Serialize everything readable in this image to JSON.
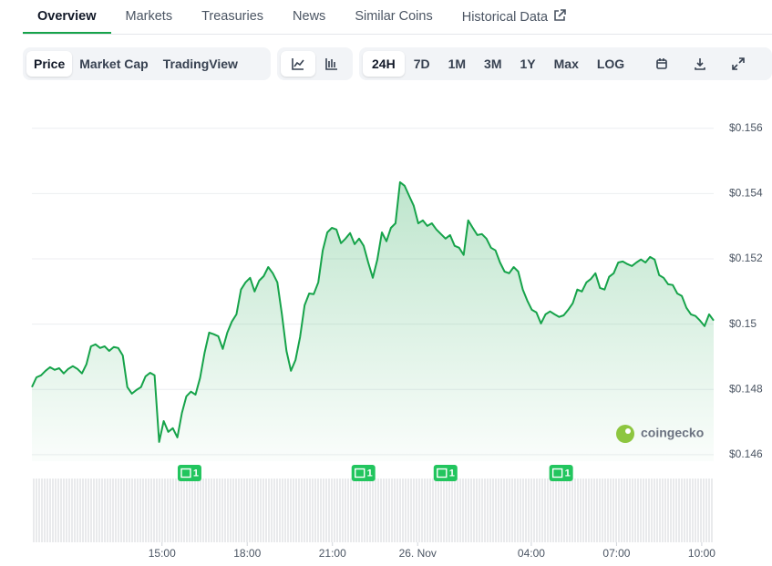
{
  "tabs": [
    "Overview",
    "Markets",
    "Treasuries",
    "News",
    "Similar Coins",
    "Historical Data"
  ],
  "active_tab": "Overview",
  "chart_modes": [
    "Price",
    "Market Cap",
    "TradingView"
  ],
  "ranges": [
    "24H",
    "7D",
    "1M",
    "3M",
    "1Y",
    "Max",
    "LOG"
  ],
  "chart_data": {
    "type": "line",
    "color": "#16a34a",
    "watermark": "coingecko",
    "grid": true,
    "xlim": [
      10.42,
      34.42
    ],
    "xticks": [
      {
        "value": 15,
        "label": "15:00"
      },
      {
        "value": 18,
        "label": "18:00"
      },
      {
        "value": 21,
        "label": "21:00"
      },
      {
        "value": 24,
        "label": "26. Nov"
      },
      {
        "value": 28,
        "label": "04:00"
      },
      {
        "value": 31,
        "label": "07:00"
      },
      {
        "value": 34,
        "label": "10:00"
      }
    ],
    "ylim": [
      0.1458,
      0.157
    ],
    "yticks": [
      {
        "value": 0.146,
        "label": "$0.146"
      },
      {
        "value": 0.148,
        "label": "$0.148"
      },
      {
        "value": 0.15,
        "label": "$0.15"
      },
      {
        "value": 0.152,
        "label": "$0.152"
      },
      {
        "value": 0.154,
        "label": "$0.154"
      },
      {
        "value": 0.156,
        "label": "$0.156"
      }
    ],
    "news_markers": [
      {
        "x": 15.97,
        "count": 1
      },
      {
        "x": 22.09,
        "count": 1
      },
      {
        "x": 24.98,
        "count": 1
      },
      {
        "x": 29.05,
        "count": 1
      }
    ],
    "x": [
      10.42,
      10.58,
      10.74,
      10.9,
      11.06,
      11.22,
      11.38,
      11.54,
      11.7,
      11.86,
      12.02,
      12.18,
      12.34,
      12.5,
      12.66,
      12.82,
      12.98,
      13.14,
      13.3,
      13.46,
      13.62,
      13.78,
      13.94,
      14.1,
      14.26,
      14.42,
      14.58,
      14.74,
      14.9,
      15.06,
      15.22,
      15.38,
      15.54,
      15.7,
      15.86,
      16.02,
      16.18,
      16.34,
      16.5,
      16.66,
      16.82,
      16.98,
      17.14,
      17.3,
      17.46,
      17.62,
      17.78,
      17.94,
      18.1,
      18.26,
      18.42,
      18.58,
      18.74,
      18.9,
      19.06,
      19.22,
      19.38,
      19.54,
      19.7,
      19.86,
      20.02,
      20.18,
      20.34,
      20.5,
      20.66,
      20.82,
      20.98,
      21.14,
      21.3,
      21.46,
      21.62,
      21.78,
      21.94,
      22.1,
      22.26,
      22.42,
      22.58,
      22.74,
      22.9,
      23.06,
      23.22,
      23.38,
      23.54,
      23.7,
      23.86,
      24.02,
      24.18,
      24.34,
      24.5,
      24.66,
      24.82,
      24.98,
      25.14,
      25.3,
      25.46,
      25.62,
      25.78,
      25.94,
      26.1,
      26.26,
      26.42,
      26.58,
      26.74,
      26.9,
      27.06,
      27.22,
      27.38,
      27.54,
      27.7,
      27.86,
      28.02,
      28.18,
      28.34,
      28.5,
      28.66,
      28.82,
      28.98,
      29.14,
      29.3,
      29.46,
      29.62,
      29.78,
      29.94,
      30.1,
      30.26,
      30.42,
      30.58,
      30.74,
      30.9,
      31.06,
      31.22,
      31.38,
      31.54,
      31.7,
      31.86,
      32.02,
      32.18,
      32.34,
      32.5,
      32.66,
      32.82,
      32.98,
      33.14,
      33.3,
      33.46,
      33.62,
      33.78,
      33.94,
      34.1,
      34.26,
      34.42
    ],
    "values": [
      0.14807,
      0.14837,
      0.14843,
      0.14857,
      0.14868,
      0.1486,
      0.14865,
      0.14849,
      0.14863,
      0.14871,
      0.14863,
      0.14849,
      0.14877,
      0.14932,
      0.14938,
      0.14927,
      0.14932,
      0.14918,
      0.1493,
      0.14927,
      0.14904,
      0.14807,
      0.14787,
      0.14798,
      0.14807,
      0.1484,
      0.14851,
      0.14843,
      0.14639,
      0.14703,
      0.1467,
      0.14681,
      0.14653,
      0.14728,
      0.14779,
      0.14793,
      0.14784,
      0.14835,
      0.14913,
      0.14974,
      0.14969,
      0.14963,
      0.14924,
      0.14974,
      0.15008,
      0.1503,
      0.15106,
      0.15128,
      0.15142,
      0.151,
      0.15133,
      0.15147,
      0.15175,
      0.15156,
      0.15128,
      0.1503,
      0.14918,
      0.14857,
      0.1489,
      0.1496,
      0.15058,
      0.15094,
      0.15092,
      0.15128,
      0.15226,
      0.15281,
      0.15295,
      0.1529,
      0.15248,
      0.15262,
      0.15279,
      0.15245,
      0.15262,
      0.1524,
      0.15189,
      0.15142,
      0.15198,
      0.15281,
      0.15254,
      0.15295,
      0.15309,
      0.15435,
      0.15424,
      0.15393,
      0.15363,
      0.15309,
      0.15318,
      0.15301,
      0.15309,
      0.1529,
      0.15276,
      0.15262,
      0.15273,
      0.1524,
      0.15234,
      0.15212,
      0.15318,
      0.15295,
      0.15273,
      0.15276,
      0.15262,
      0.15234,
      0.15226,
      0.15189,
      0.15161,
      0.15156,
      0.15175,
      0.15161,
      0.15106,
      0.15072,
      0.15044,
      0.15036,
      0.15002,
      0.1503,
      0.15039,
      0.1503,
      0.15022,
      0.15027,
      0.15044,
      0.15064,
      0.15106,
      0.151,
      0.15128,
      0.15139,
      0.15156,
      0.15111,
      0.15106,
      0.15145,
      0.15156,
      0.15189,
      0.15192,
      0.15184,
      0.15178,
      0.15189,
      0.15198,
      0.15189,
      0.15206,
      0.15198,
      0.1515,
      0.15142,
      0.15122,
      0.1512,
      0.15094,
      0.15086,
      0.1505,
      0.1503,
      0.15025,
      0.15011,
      0.14994,
      0.1503,
      0.15011
    ]
  }
}
